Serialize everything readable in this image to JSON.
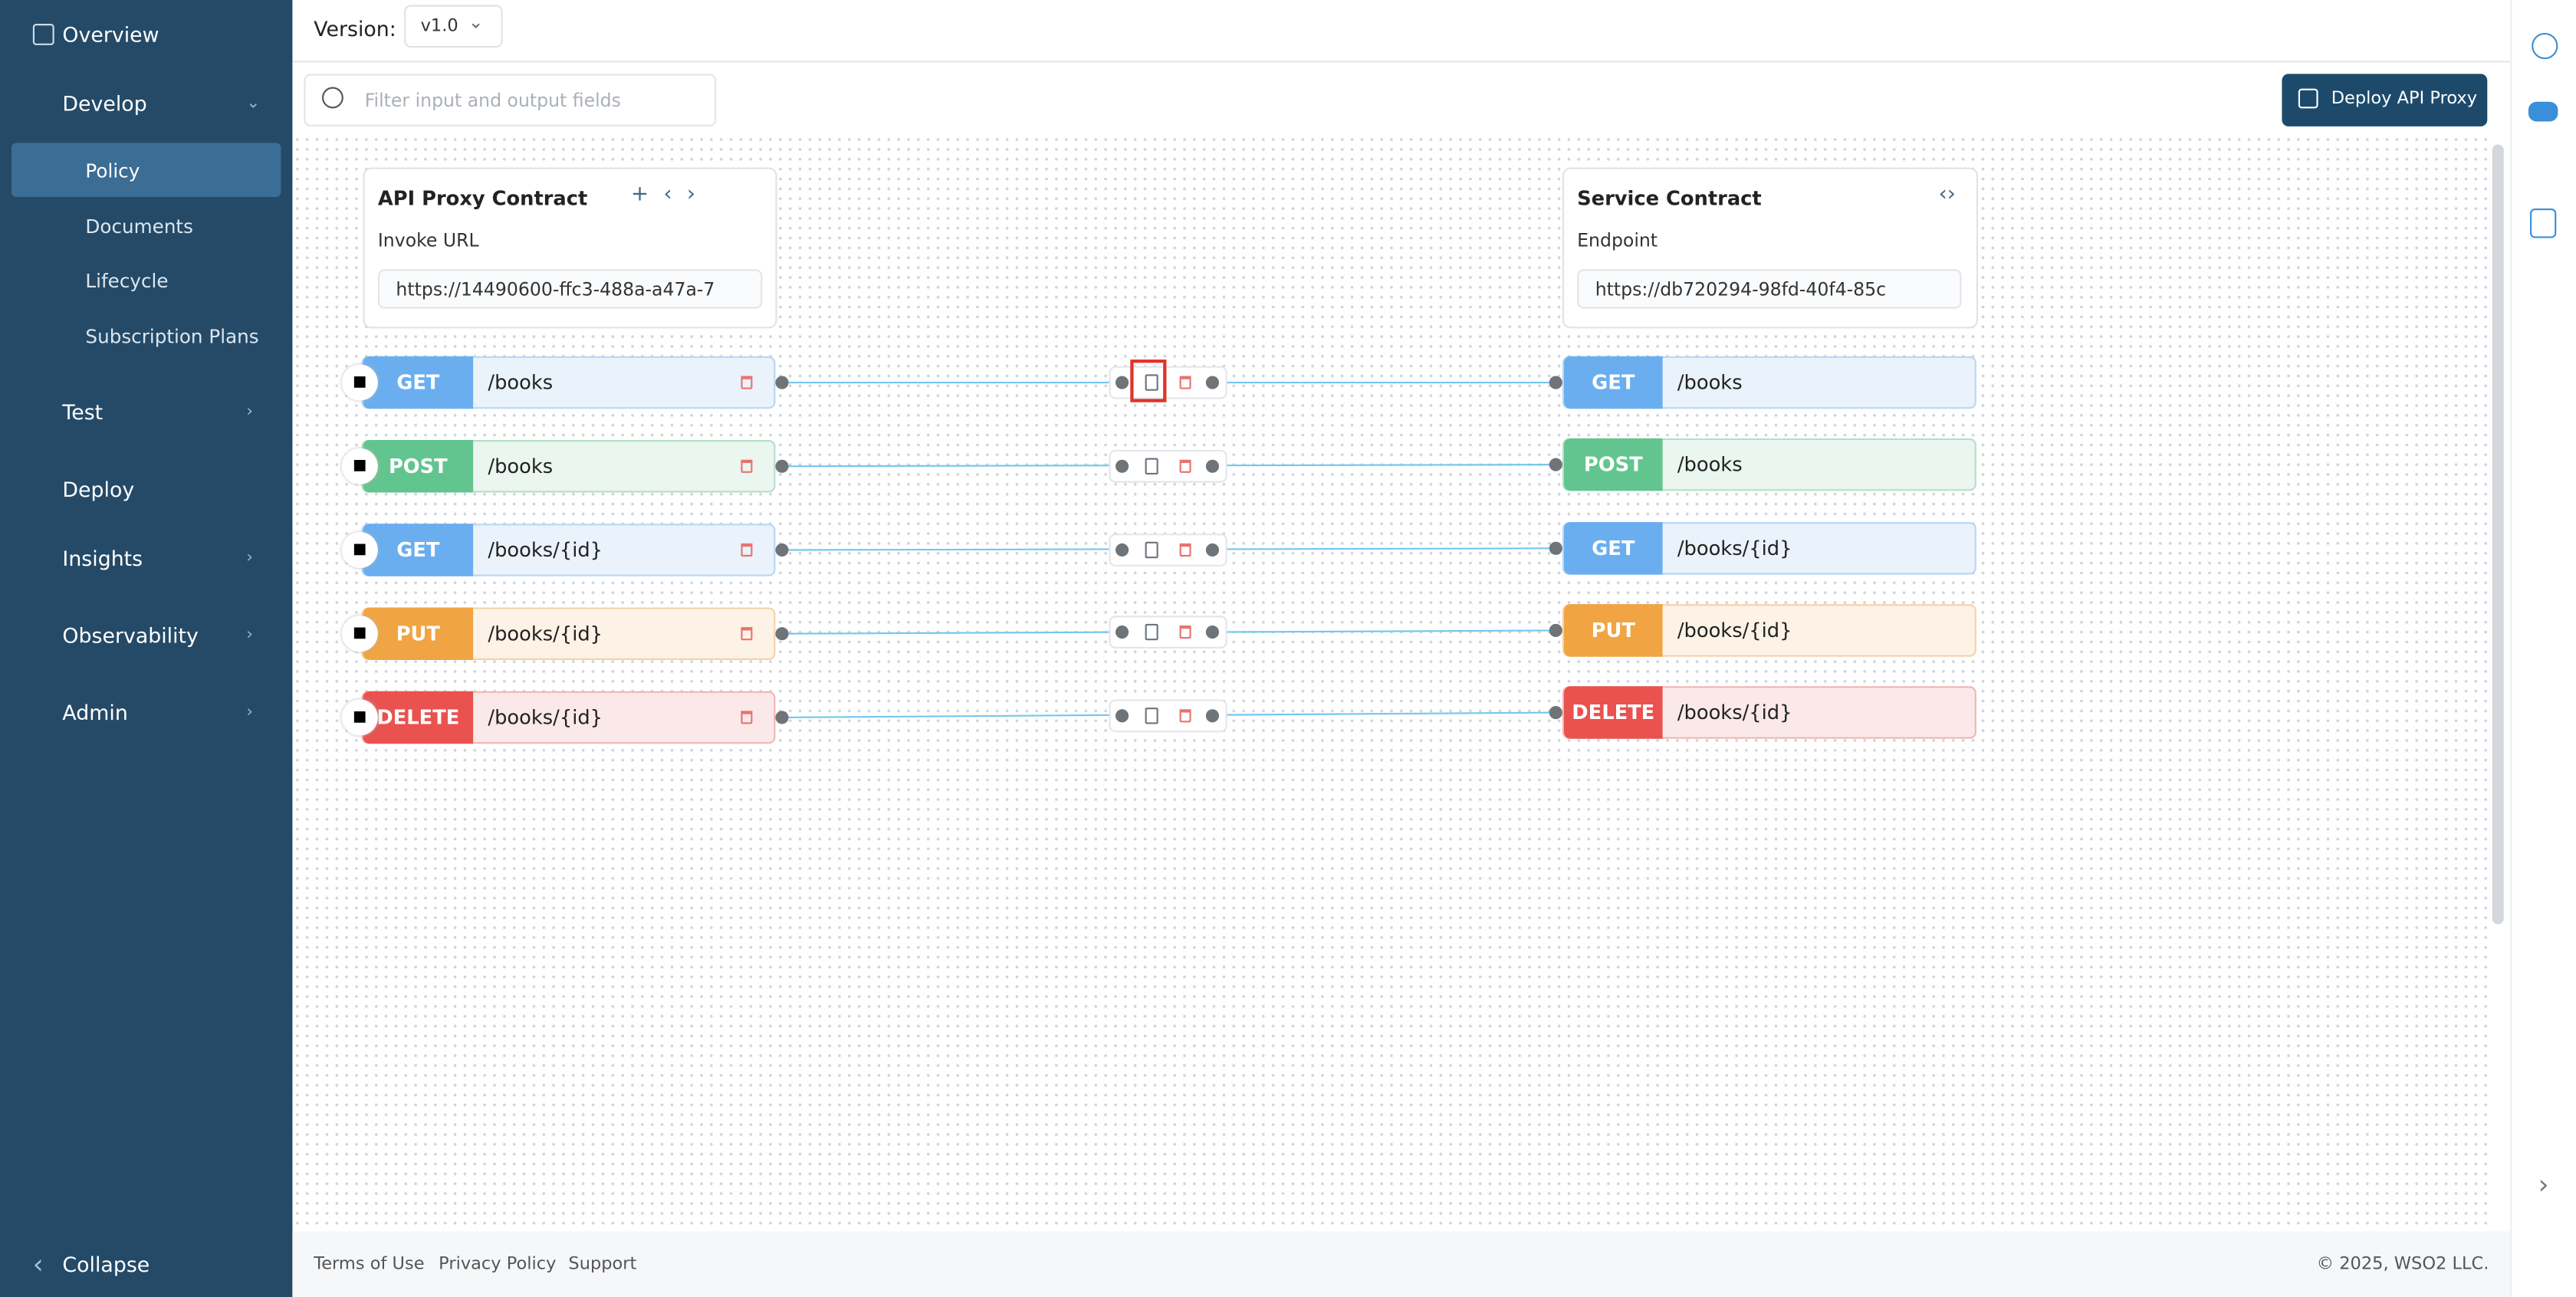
{
  "sidebar": {
    "items": [
      "Overview",
      "Develop",
      "Policy",
      "Documents",
      "Lifecycle",
      "Subscription Plans",
      "Test",
      "Deploy",
      "Insights",
      "Observability",
      "Admin"
    ],
    "collapse": "Collapse"
  },
  "header": {
    "version_label": "Version:",
    "version": "v1.0"
  },
  "toolbar": {
    "search_placeholder": "Filter input and output fields",
    "deploy_button": "Deploy API Proxy"
  },
  "proxy_contract": {
    "title": "API Proxy Contract",
    "url_label": "Invoke URL",
    "url": "https://14490600-ffc3-488a-a47a-7"
  },
  "service_contract": {
    "title": "Service Contract",
    "url_label": "Endpoint",
    "url": "https://db720294-98fd-40f4-85c"
  },
  "operations": [
    {
      "method": "GET",
      "path": "/books"
    },
    {
      "method": "POST",
      "path": "/books"
    },
    {
      "method": "GET",
      "path": "/books/{id}"
    },
    {
      "method": "PUT",
      "path": "/books/{id}"
    },
    {
      "method": "DELETE",
      "path": "/books/{id}"
    }
  ],
  "footer": {
    "links": [
      "Terms of Use",
      "Privacy Policy",
      "Support"
    ],
    "copyright": "© 2025, WSO2 LLC."
  }
}
